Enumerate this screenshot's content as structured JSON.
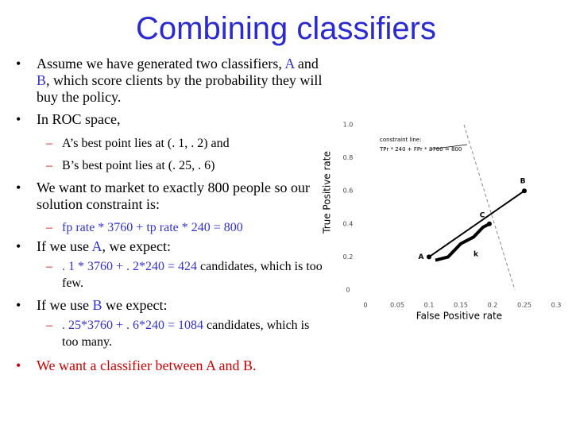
{
  "slide": {
    "title": "Combining classifiers",
    "bullets": [
      {
        "level": 1,
        "marker": "•",
        "marker_color": "#000000",
        "runs": [
          {
            "text": "Assume we have generated two classifiers, ",
            "color": "#000000"
          },
          {
            "text": "A",
            "color": "#3333cc"
          },
          {
            "text": " and ",
            "color": "#000000"
          },
          {
            "text": "B",
            "color": "#3333cc"
          },
          {
            "text": ", which score clients by the probability they will buy the policy.",
            "color": "#000000"
          }
        ]
      },
      {
        "level": 1,
        "marker": "•",
        "marker_color": "#000000",
        "runs": [
          {
            "text": "In ROC space,",
            "color": "#000000"
          }
        ]
      },
      {
        "level": 2,
        "marker": "–",
        "marker_color": "#cc0000",
        "runs": [
          {
            "text": "A’s best point lies at (. 1, . 2) and",
            "color": "#000000"
          }
        ]
      },
      {
        "level": 2,
        "marker": "–",
        "marker_color": "#cc0000",
        "runs": [
          {
            "text": "B’s best point lies at (. 25, . 6)",
            "color": "#000000"
          }
        ]
      },
      {
        "level": 1,
        "marker": "•",
        "marker_color": "#000000",
        "runs": [
          {
            "text": "We want to market to exactly 800 people so our solution constraint is:",
            "color": "#000000"
          }
        ]
      },
      {
        "level": 2,
        "marker": "–",
        "marker_color": "#cc0000",
        "runs": [
          {
            "text": "fp rate * 3760 + tp rate * 240 = 800",
            "color": "#3333cc"
          }
        ]
      },
      {
        "level": 1,
        "marker": "•",
        "marker_color": "#000000",
        "runs": [
          {
            "text": "If we use ",
            "color": "#000000"
          },
          {
            "text": "A",
            "color": "#3333cc"
          },
          {
            "text": ", we expect:",
            "color": "#000000"
          }
        ]
      },
      {
        "level": 2,
        "marker": "–",
        "marker_color": "#cc0000",
        "runs": [
          {
            "text": ". 1 * 3760 + . 2*240 = 424",
            "color": "#3333cc"
          },
          {
            "text": " candidates, which is too few.",
            "color": "#000000"
          }
        ]
      },
      {
        "level": 1,
        "marker": "•",
        "marker_color": "#000000",
        "runs": [
          {
            "text": "If we use ",
            "color": "#000000"
          },
          {
            "text": "B",
            "color": "#3333cc"
          },
          {
            "text": " we expect:",
            "color": "#000000"
          }
        ]
      },
      {
        "level": 2,
        "marker": "–",
        "marker_color": "#cc0000",
        "runs": [
          {
            "text": ". 25*3760 + . 6*240 = 1084",
            "color": "#3333cc"
          },
          {
            "text": " candidates, which is too many.",
            "color": "#000000"
          }
        ]
      },
      {
        "level": 1,
        "marker": "•",
        "marker_color": "#cc0000",
        "runs": [
          {
            "text": "We want a classifier between A and B.",
            "color": "#cc0000"
          }
        ]
      }
    ]
  },
  "chart_data": {
    "type": "scatter",
    "xlabel": "False Positive rate",
    "ylabel": "True Positive rate",
    "xlim": [
      0,
      0.3
    ],
    "ylim": [
      0,
      1
    ],
    "xticks": [
      0,
      0.05,
      0.1,
      0.15,
      0.2,
      0.25,
      0.3
    ],
    "yticks": [
      0,
      0.2,
      0.4,
      0.6,
      0.8,
      {
        "value": 1,
        "label": "1.0"
      }
    ],
    "series": [
      {
        "name": "A",
        "color": "#000000",
        "x": [
          0.1
        ],
        "values": [
          0.2
        ]
      },
      {
        "name": "B",
        "color": "#000000",
        "x": [
          0.25
        ],
        "values": [
          0.6
        ]
      },
      {
        "name": "C",
        "color": "#000000",
        "x": [
          0.195
        ],
        "values": [
          0.4
        ]
      }
    ],
    "lines": [
      {
        "x": [
          0.1,
          0.25
        ],
        "values": [
          0.2,
          0.6
        ],
        "color": "#000000",
        "width": 2,
        "dashed": false
      },
      {
        "name": "k",
        "x": [
          0.11,
          0.13,
          0.15,
          0.17,
          0.185,
          0.195
        ],
        "values": [
          0.18,
          0.2,
          0.28,
          0.32,
          0.38,
          0.4
        ],
        "color": "#000000",
        "width": 4,
        "dashed": false
      },
      {
        "x": [
          0.155,
          0.235
        ],
        "values": [
          1,
          0
        ],
        "color": "#888888",
        "width": 1,
        "dashed": true
      }
    ],
    "annotation": [
      "constraint line:",
      "TPr * 240 + FPr * 3760 = 800"
    ]
  }
}
